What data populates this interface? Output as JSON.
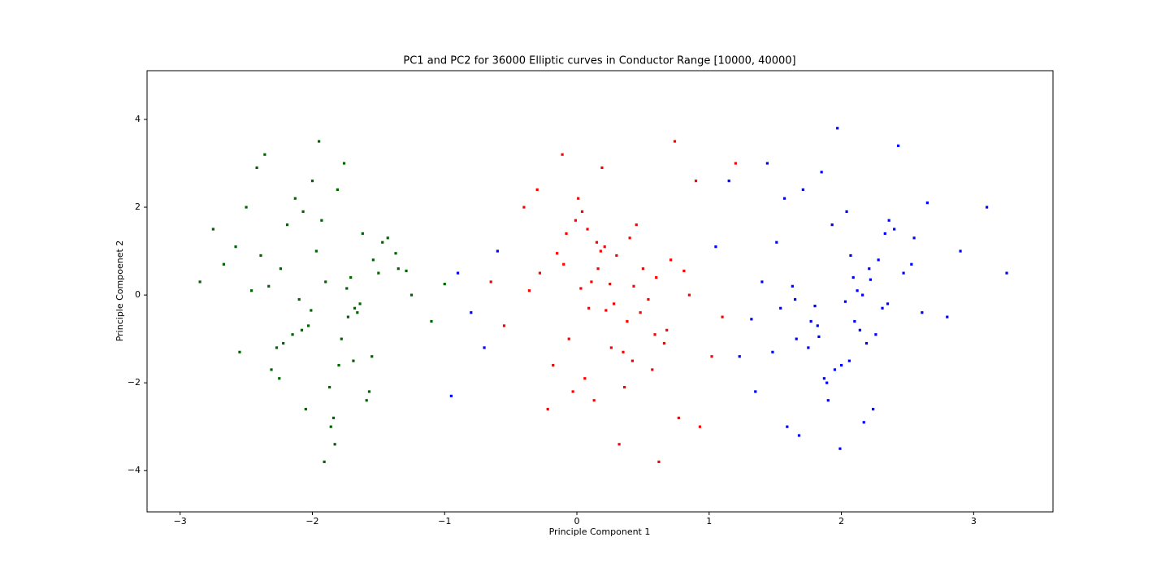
{
  "chart_data": {
    "type": "scatter",
    "title": "PC1 and PC2 for 36000 Elliptic curves in Conductor Range [10000, 40000]",
    "x_label": "Principle Component 1",
    "y_label": "Principle Compoenet 2",
    "xlim": [
      -3.25,
      3.6
    ],
    "ylim": [
      -4.94,
      5.11
    ],
    "xticks": [
      {
        "value": -3,
        "label": "−3"
      },
      {
        "value": -2,
        "label": "−2"
      },
      {
        "value": -1,
        "label": "−1"
      },
      0,
      1,
      2,
      3
    ],
    "yticks": [
      {
        "value": -4,
        "label": "−4"
      },
      {
        "value": -2,
        "label": "−2"
      },
      0,
      2,
      4
    ],
    "grid": false,
    "series": [
      {
        "color": "#006400",
        "x": [
          -1.9,
          -2.27,
          -1.54,
          -2.07,
          -1.73,
          -2.46,
          -1.87,
          -1.62,
          -2.15,
          -1.35,
          -2.0,
          -1.8,
          -2.33,
          -1.68,
          -2.58,
          -1.84,
          -1.5,
          -2.22,
          -1.93,
          -2.1,
          -1.59,
          -2.39,
          -1.76,
          -2.03,
          -1.43,
          -2.25,
          -1.25,
          -2.67,
          -1.83,
          -2.13,
          -1.66,
          -1.97,
          -1.55,
          -2.5,
          -1.71,
          -2.05,
          -1.1,
          -2.85,
          -1.95,
          -1.78,
          -2.19,
          -1.64,
          -2.31,
          -1.37,
          -2.42,
          -1.86,
          -1.74,
          -2.08,
          -1.47,
          -2.55,
          -1.81,
          -2.24,
          -1.57,
          -2.01,
          -1.29,
          -2.75,
          -1.69,
          -2.36,
          -1.91,
          -1.0
        ],
        "y": [
          0.3,
          -1.2,
          0.8,
          1.9,
          -0.5,
          0.1,
          -2.1,
          1.4,
          -0.9,
          0.6,
          2.6,
          -1.6,
          0.2,
          -0.3,
          1.1,
          -2.8,
          0.5,
          -1.1,
          1.7,
          -0.1,
          -2.4,
          0.9,
          3.0,
          -0.7,
          1.3,
          -1.9,
          0.0,
          0.7,
          -3.4,
          2.2,
          -0.4,
          1.0,
          -1.4,
          2.0,
          0.4,
          -2.6,
          -0.6,
          0.3,
          3.5,
          -1.0,
          1.6,
          -0.2,
          -1.7,
          0.95,
          2.9,
          -3.0,
          0.15,
          -0.8,
          1.2,
          -1.3,
          2.4,
          0.6,
          -2.2,
          -0.35,
          0.55,
          1.5,
          -1.5,
          3.2,
          -3.8,
          0.25
        ]
      },
      {
        "color": "#ff0000",
        "x": [
          0.25,
          0.62,
          -0.11,
          0.42,
          0.08,
          0.81,
          0.22,
          -0.03,
          0.5,
          -0.3,
          0.35,
          0.15,
          0.68,
          0.03,
          0.93,
          0.19,
          -0.15,
          0.57,
          0.28,
          0.45,
          -0.06,
          0.74,
          0.11,
          0.38,
          -0.22,
          0.6,
          -0.4,
          1.02,
          0.18,
          0.48,
          0.01,
          0.32,
          -0.1,
          0.85,
          0.06,
          0.4,
          -0.55,
          1.2,
          0.3,
          0.13,
          0.54,
          -0.01,
          0.66,
          -0.28,
          0.77,
          0.21,
          0.09,
          0.43,
          -0.18,
          0.9,
          0.16,
          0.59,
          -0.08,
          0.36,
          -0.36,
          1.1,
          0.04,
          0.71,
          0.26,
          -0.65
        ],
        "y": [
          0.25,
          -3.8,
          3.2,
          -1.5,
          1.5,
          0.55,
          -0.35,
          -2.2,
          0.6,
          2.4,
          -1.3,
          1.2,
          -0.8,
          0.15,
          -3.0,
          2.9,
          0.95,
          -1.7,
          -0.2,
          1.6,
          -1.0,
          3.5,
          0.3,
          -0.6,
          -2.6,
          0.4,
          2.0,
          -1.4,
          1.0,
          -0.4,
          2.2,
          -3.4,
          0.7,
          0.0,
          -1.9,
          1.3,
          -0.7,
          3.0,
          0.9,
          -2.4,
          -0.1,
          1.7,
          -1.1,
          0.5,
          -2.8,
          1.1,
          -0.3,
          0.2,
          -1.6,
          2.6,
          0.6,
          -0.9,
          1.4,
          -2.1,
          0.1,
          -0.5,
          1.9,
          0.8,
          -1.2,
          0.3
        ]
      },
      {
        "color": "#0000ff",
        "x": [
          2.31,
          1.51,
          2.14,
          1.87,
          2.47,
          1.65,
          2.65,
          1.23,
          2.07,
          1.77,
          2.24,
          1.93,
          2.35,
          1.4,
          2.19,
          1.85,
          2.8,
          1.05,
          1.95,
          2.12,
          1.71,
          2.26,
          1.59,
          2.53,
          1.48,
          2.04,
          2.16,
          1.82,
          2.43,
          1.35,
          2.09,
          1.66,
          2.33,
          1.89,
          2.61,
          1.15,
          2.21,
          1.54,
          1.99,
          2.9,
          2.0,
          1.63,
          2.36,
          1.83,
          2.17,
          1.44,
          2.03,
          2.28,
          1.75,
          2.55,
          1.9,
          2.1,
          1.57,
          2.22,
          1.32,
          2.06,
          2.4,
          1.68,
          1.97,
          1.8,
          -0.9,
          -0.7,
          -0.6,
          -0.95,
          -0.8,
          3.25,
          3.1
        ],
        "y": [
          -0.3,
          1.2,
          -0.8,
          -1.9,
          0.5,
          -0.1,
          2.1,
          -1.4,
          0.9,
          -0.6,
          -2.6,
          1.6,
          -0.2,
          0.3,
          -1.1,
          2.8,
          -0.5,
          1.1,
          -1.7,
          0.1,
          2.4,
          -0.9,
          -3.0,
          0.7,
          -1.3,
          1.9,
          0.0,
          -0.7,
          3.4,
          -2.2,
          0.4,
          -1.0,
          1.4,
          -2.0,
          -0.4,
          2.6,
          0.6,
          -0.3,
          -3.5,
          1.0,
          -1.6,
          0.2,
          1.7,
          -0.95,
          -2.9,
          3.0,
          -0.15,
          0.8,
          -1.2,
          1.3,
          -2.4,
          -0.6,
          2.2,
          0.35,
          -0.55,
          -1.5,
          1.5,
          -3.2,
          3.8,
          -0.25,
          0.5,
          -1.2,
          1.0,
          -2.3,
          -0.4,
          0.5,
          2.0
        ]
      }
    ]
  }
}
